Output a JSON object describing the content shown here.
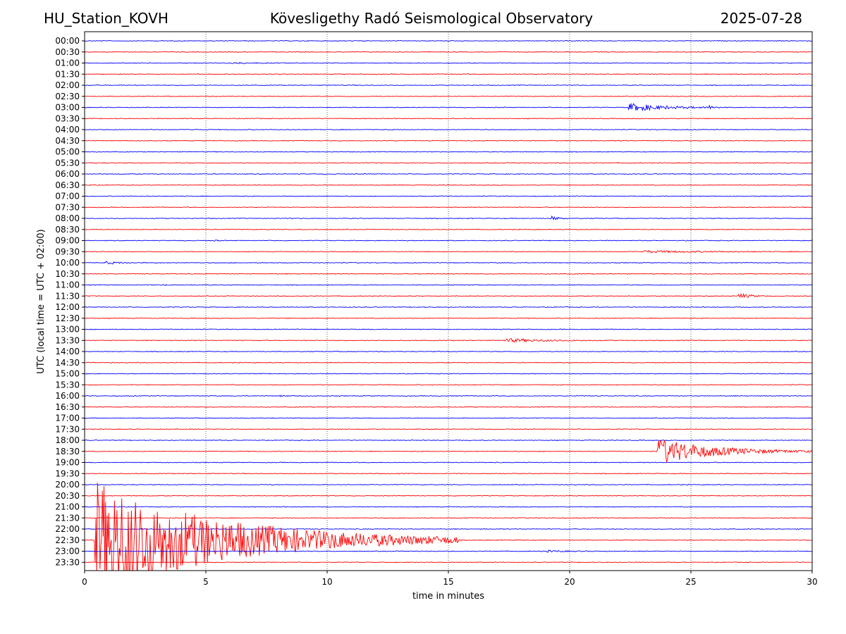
{
  "header": {
    "station": "HU_Station_KOVH",
    "title": "Kövesligethy Radó Seismological Observatory",
    "date": "2025-07-28"
  },
  "chart_data": {
    "type": "line",
    "title": "Kövesligethy Radó Seismological Observatory",
    "xlabel": "time in minutes",
    "ylabel": "UTC (local time = UTC + 02:00)",
    "xlim": [
      0,
      30
    ],
    "x_ticks": [
      0,
      5,
      10,
      15,
      20,
      25,
      30
    ],
    "grid_x": "dotted vertical lines at 5, 10, 15, 20, 25",
    "colors": [
      "#0000ff",
      "#ff0000"
    ],
    "rows": [
      "00:00",
      "00:30",
      "01:00",
      "01:30",
      "02:00",
      "02:30",
      "03:00",
      "03:30",
      "04:00",
      "04:30",
      "05:00",
      "05:30",
      "06:00",
      "06:30",
      "07:00",
      "07:30",
      "08:00",
      "08:30",
      "09:00",
      "09:30",
      "10:00",
      "10:30",
      "11:00",
      "11:30",
      "12:00",
      "12:30",
      "13:00",
      "13:30",
      "14:00",
      "14:30",
      "15:00",
      "15:30",
      "16:00",
      "16:30",
      "17:00",
      "17:30",
      "18:00",
      "18:30",
      "19:00",
      "19:30",
      "20:00",
      "20:30",
      "21:00",
      "21:30",
      "22:00",
      "22:30",
      "23:00",
      "23:30"
    ],
    "events": [
      {
        "row": "01:00",
        "start_min": 6.0,
        "amp": 0.15,
        "dur": 2.5
      },
      {
        "row": "03:00",
        "start_min": 22.4,
        "amp": 1.0,
        "dur": 4.0
      },
      {
        "row": "03:00",
        "start_min": 25.7,
        "amp": 0.6,
        "dur": 0.5
      },
      {
        "row": "04:00",
        "start_min": 4.3,
        "amp": 0.2,
        "dur": 0.4
      },
      {
        "row": "08:00",
        "start_min": 19.2,
        "amp": 0.7,
        "dur": 0.7
      },
      {
        "row": "09:00",
        "start_min": 5.3,
        "amp": 0.15,
        "dur": 0.6
      },
      {
        "row": "09:30",
        "start_min": 23.0,
        "amp": 0.25,
        "dur": 7.0
      },
      {
        "row": "10:00",
        "start_min": 0.8,
        "amp": 0.35,
        "dur": 1.8
      },
      {
        "row": "11:00",
        "start_min": 3.2,
        "amp": 0.3,
        "dur": 0.4
      },
      {
        "row": "11:30",
        "start_min": 26.9,
        "amp": 0.8,
        "dur": 1.3
      },
      {
        "row": "13:30",
        "start_min": 17.3,
        "amp": 0.45,
        "dur": 4.5
      },
      {
        "row": "16:00",
        "start_min": 8.0,
        "amp": 0.15,
        "dur": 1.0
      },
      {
        "row": "18:30",
        "start_min": 23.6,
        "amp": 3.2,
        "dur": 6.4
      },
      {
        "row": "22:30",
        "start_min": 0.4,
        "amp": 14.0,
        "dur": 15.0
      },
      {
        "row": "23:00",
        "start_min": 19.0,
        "amp": 0.2,
        "dur": 2.5
      }
    ]
  }
}
